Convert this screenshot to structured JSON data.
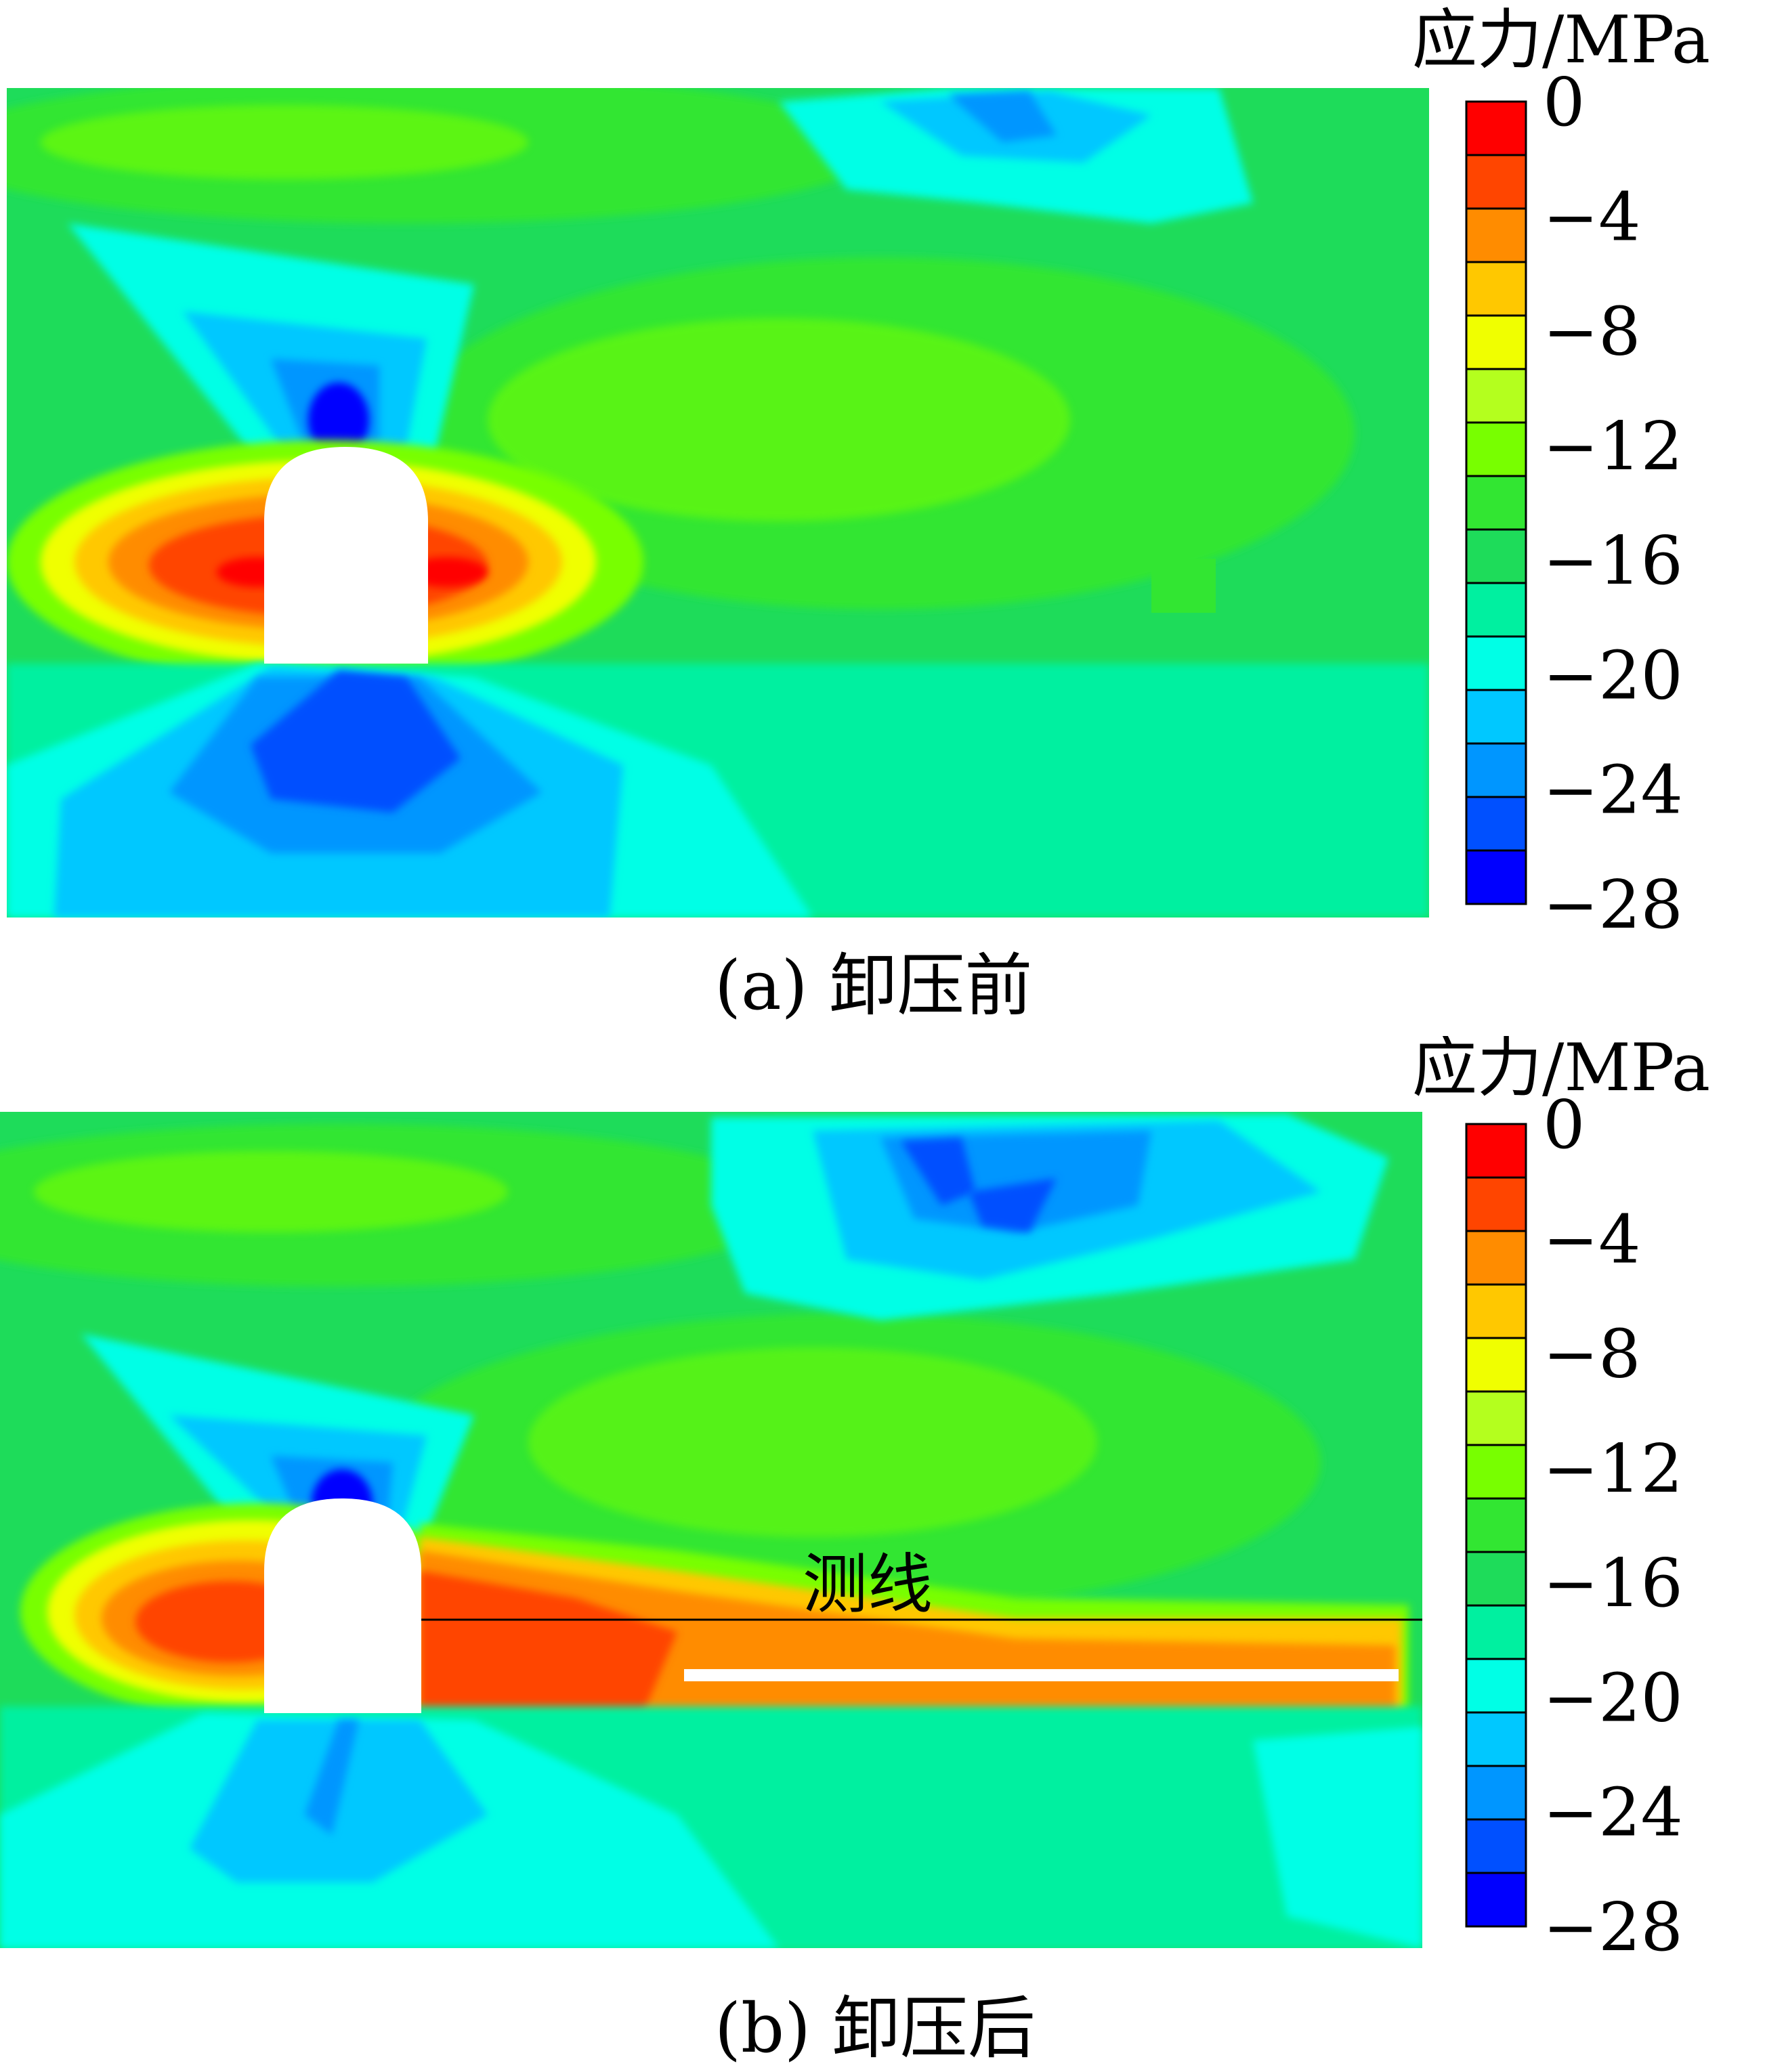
{
  "colorbar": {
    "unit_label": "应力/MPa",
    "ticks": [
      "0",
      "−4",
      "−8",
      "−12",
      "−16",
      "−20",
      "−24",
      "−28"
    ],
    "colors": [
      "#ff0000",
      "#ff4500",
      "#ff8c00",
      "#ffc800",
      "#f0ff00",
      "#b4ff1e",
      "#78ff00",
      "#32e632",
      "#1edc5a",
      "#00f0a0",
      "#00ffe6",
      "#00c8ff",
      "#0096ff",
      "#0050ff",
      "#0000ff"
    ]
  },
  "panels": [
    {
      "caption": "(a)  卸压前"
    },
    {
      "caption": "(b)  卸压后",
      "annotation": "测线"
    }
  ]
}
